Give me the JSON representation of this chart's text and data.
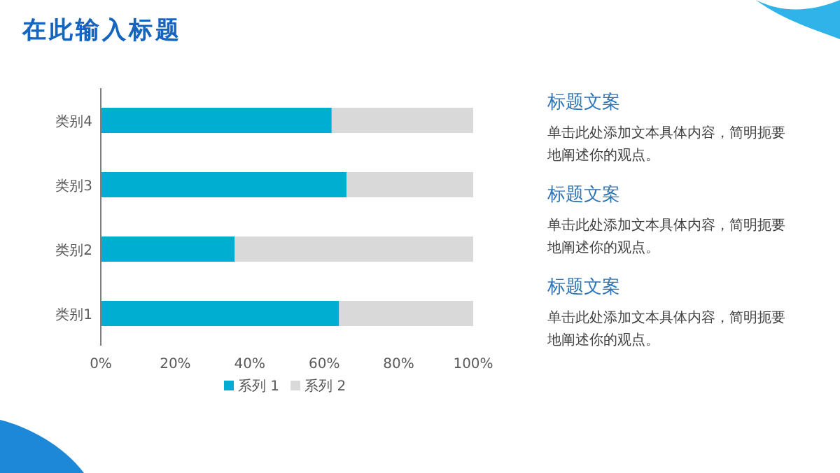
{
  "chart_data": [
    {
      "type": "bar",
      "title": "在此输入标题",
      "orientation": "horizontal",
      "stacked": true,
      "categories": [
        "类别4",
        "类别3",
        "类别2",
        "类别1"
      ],
      "series": [
        {
          "name": "系列 1",
          "color": "#00aed1",
          "values": [
            62,
            66,
            36,
            64
          ]
        },
        {
          "name": "系列 2",
          "color": "#d9d9d9",
          "values": [
            38,
            34,
            64,
            36
          ]
        }
      ],
      "xlim": [
        0,
        100
      ],
      "xticks": [
        {
          "value": 0,
          "label": "0%"
        },
        {
          "value": 20,
          "label": "20%"
        },
        {
          "value": 40,
          "label": "40%"
        },
        {
          "value": 60,
          "label": "60%"
        },
        {
          "value": 80,
          "label": "80%"
        },
        {
          "value": 100,
          "label": "100%"
        }
      ],
      "legend": "bottom",
      "grid": false
    },
    {
      "type": "other",
      "annotations": [
        "标题文案",
        "单击此处添加文本具体内容，简明扼要地阐述你的观点。",
        "标题文案",
        "单击此处添加文本具体内容，简明扼要地阐述你的观点。",
        "标题文案",
        "单击此处添加文本具体内容，简明扼要地阐述你的观点。"
      ]
    }
  ]
}
